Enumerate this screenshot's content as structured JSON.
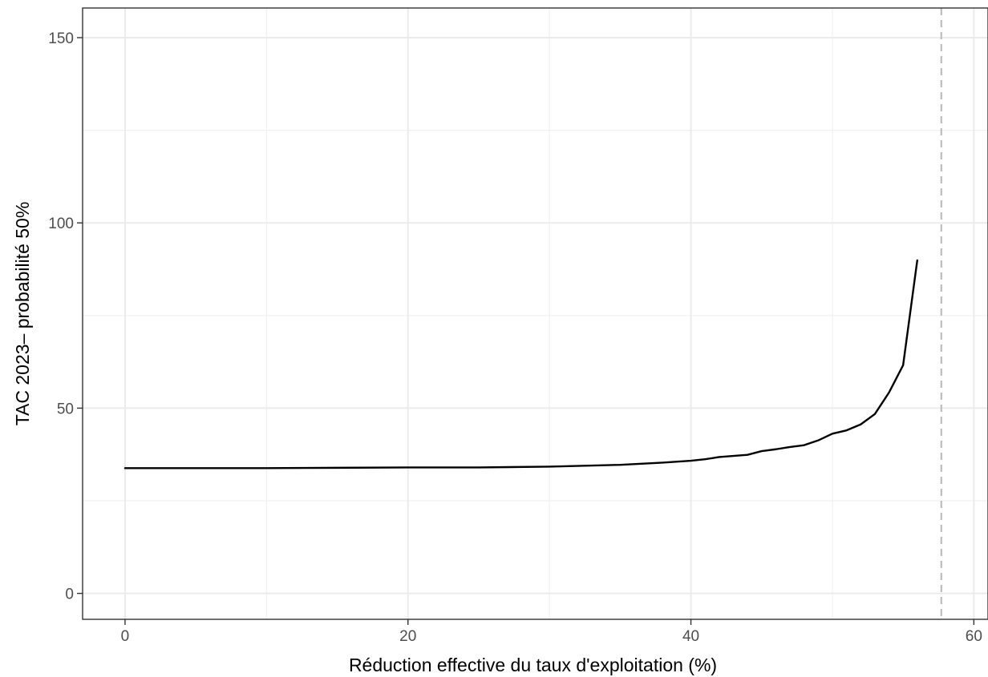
{
  "chart_data": {
    "type": "line",
    "title": "",
    "xlabel": "Réduction effective du taux d'exploitation (%)",
    "ylabel": "TAC 2023– probabilité 50%",
    "xlim": [
      -3,
      61
    ],
    "ylim": [
      -7,
      158
    ],
    "x_ticks": [
      0,
      20,
      40,
      60
    ],
    "x_tick_labels": [
      "0",
      "20",
      "40",
      "60"
    ],
    "y_ticks": [
      0,
      50,
      100,
      150
    ],
    "y_tick_labels": [
      "0",
      "50",
      "100",
      "150"
    ],
    "grid": true,
    "legend": "none",
    "reference_line": {
      "x": 57.7,
      "style": "dashed",
      "color": "#bebebe"
    },
    "series": [
      {
        "color": "#000000",
        "points": [
          [
            0,
            33.8
          ],
          [
            5,
            33.8
          ],
          [
            10,
            33.8
          ],
          [
            15,
            33.9
          ],
          [
            20,
            34.0
          ],
          [
            25,
            34.0
          ],
          [
            30,
            34.2
          ],
          [
            35,
            34.7
          ],
          [
            38,
            35.3
          ],
          [
            40,
            35.8
          ],
          [
            41,
            36.2
          ],
          [
            42,
            36.8
          ],
          [
            43,
            37.1
          ],
          [
            44,
            37.4
          ],
          [
            45,
            38.4
          ],
          [
            46,
            38.9
          ],
          [
            47,
            39.5
          ],
          [
            48,
            40.0
          ],
          [
            49,
            41.3
          ],
          [
            50,
            43.1
          ],
          [
            51,
            44.0
          ],
          [
            52,
            45.6
          ],
          [
            53,
            48.4
          ],
          [
            54,
            54.2
          ],
          [
            55,
            61.6
          ],
          [
            56,
            89.9
          ]
        ]
      }
    ]
  }
}
